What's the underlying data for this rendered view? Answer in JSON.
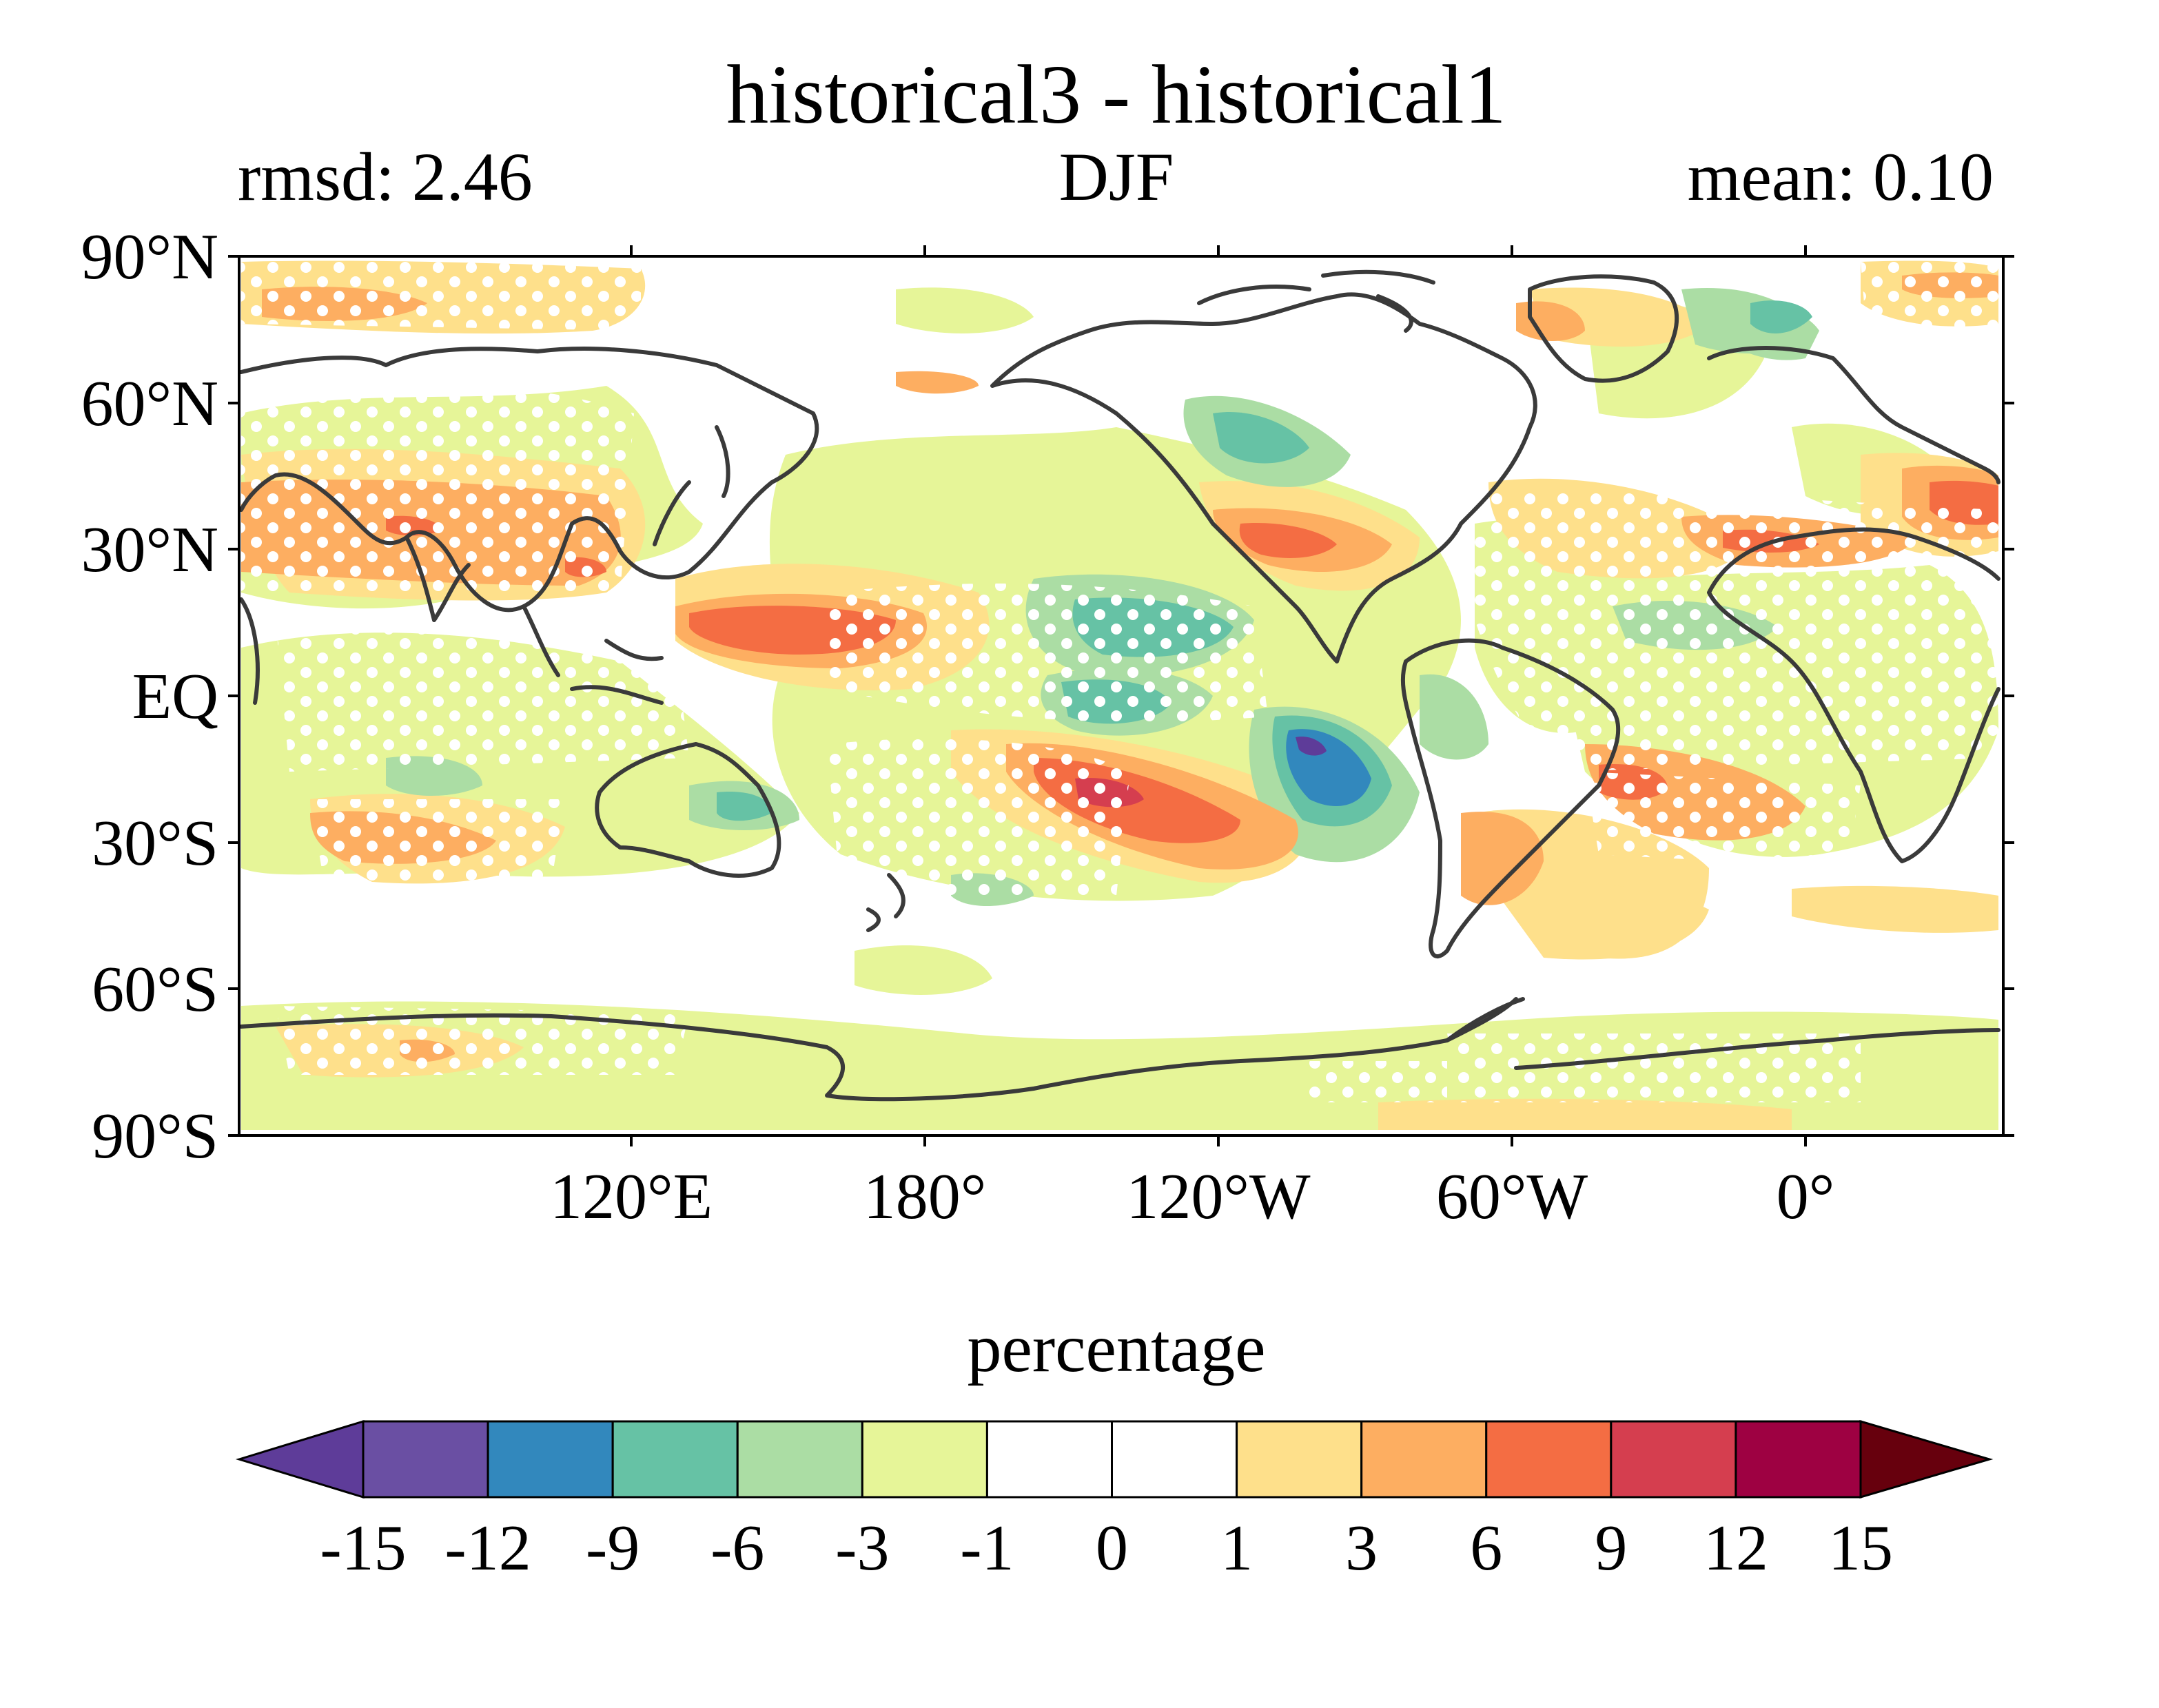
{
  "title": "historical3 - historical1",
  "left_label": "rmsd: 2.46",
  "center_label": "DJF",
  "right_label": "mean: 0.10",
  "lat_ticks": [
    "90°N",
    "60°N",
    "30°N",
    "EQ",
    "30°S",
    "60°S",
    "90°S"
  ],
  "lon_ticks": [
    "120°E",
    "180°",
    "120°W",
    "60°W",
    "0°"
  ],
  "colorbar": {
    "label": "percentage",
    "tick_labels": [
      "-15",
      "-12",
      "-9",
      "-6",
      "-3",
      "-1",
      "0",
      "1",
      "3",
      "6",
      "9",
      "12",
      "15"
    ],
    "bins": [
      "#5e3c99",
      "#6a4fa3",
      "#3288bd",
      "#66c2a5",
      "#abdda4",
      "#e6f598",
      "#ffffff",
      "#ffffff",
      "#fee08b",
      "#fdae61",
      "#f46d43",
      "#d53e4f",
      "#9e0142",
      "#67000d"
    ]
  },
  "map": {
    "projection": "PlateCarree",
    "central_longitude": "-160",
    "stippling": "white dots mark significant differences"
  },
  "colors": {
    "coastline": "#3a3a3a",
    "frame": "#000000"
  }
}
